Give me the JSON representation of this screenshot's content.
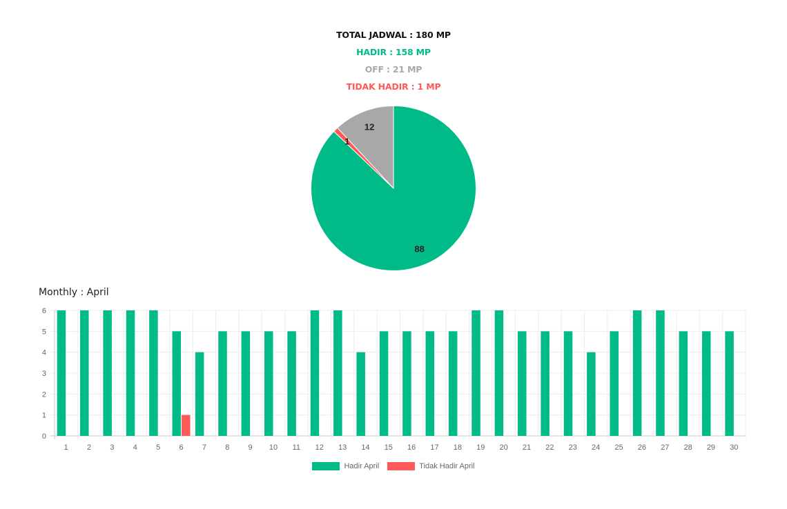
{
  "summary": {
    "total": "TOTAL JADWAL : 180 MP",
    "hadir": "HADIR : 158 MP",
    "off": "OFF : 21 MP",
    "tidak_hadir": "TIDAK HADIR : 1 MP"
  },
  "colors": {
    "hadir": "#00bb87",
    "off": "#a8a8a8",
    "tidak_hadir": "#ff5a5a",
    "total": "#111111"
  },
  "monthly_title": "Monthly : April",
  "chart_data": [
    {
      "type": "pie",
      "slices": [
        {
          "key": "hadir",
          "label": "88",
          "value": 88,
          "color": "#00bb87"
        },
        {
          "key": "tidak_hadir",
          "label": "1",
          "value": 1,
          "color": "#ff5a5a"
        },
        {
          "key": "off",
          "label": "12",
          "value": 12,
          "color": "#a8a8a8"
        }
      ]
    },
    {
      "type": "bar",
      "categories": [
        "1",
        "2",
        "3",
        "4",
        "5",
        "6",
        "7",
        "8",
        "9",
        "10",
        "11",
        "12",
        "13",
        "14",
        "15",
        "16",
        "17",
        "18",
        "19",
        "20",
        "21",
        "22",
        "23",
        "24",
        "25",
        "26",
        "27",
        "28",
        "29",
        "30"
      ],
      "series": [
        {
          "name": "Hadir April",
          "color": "#00bb87",
          "values": [
            6,
            6,
            6,
            6,
            6,
            5,
            4,
            5,
            5,
            5,
            5,
            6,
            6,
            4,
            5,
            5,
            5,
            5,
            6,
            6,
            5,
            5,
            5,
            4,
            5,
            6,
            6,
            5,
            5,
            5
          ]
        },
        {
          "name": "Tidak Hadir April",
          "color": "#ff5a5a",
          "values": [
            0,
            0,
            0,
            0,
            0,
            1,
            0,
            0,
            0,
            0,
            0,
            0,
            0,
            0,
            0,
            0,
            0,
            0,
            0,
            0,
            0,
            0,
            0,
            0,
            0,
            0,
            0,
            0,
            0,
            0
          ]
        }
      ],
      "ylim": [
        0,
        6
      ],
      "yticks": [
        "0",
        "1",
        "2",
        "3",
        "4",
        "5",
        "6"
      ],
      "grid": true,
      "legend": "bottom-center"
    }
  ]
}
